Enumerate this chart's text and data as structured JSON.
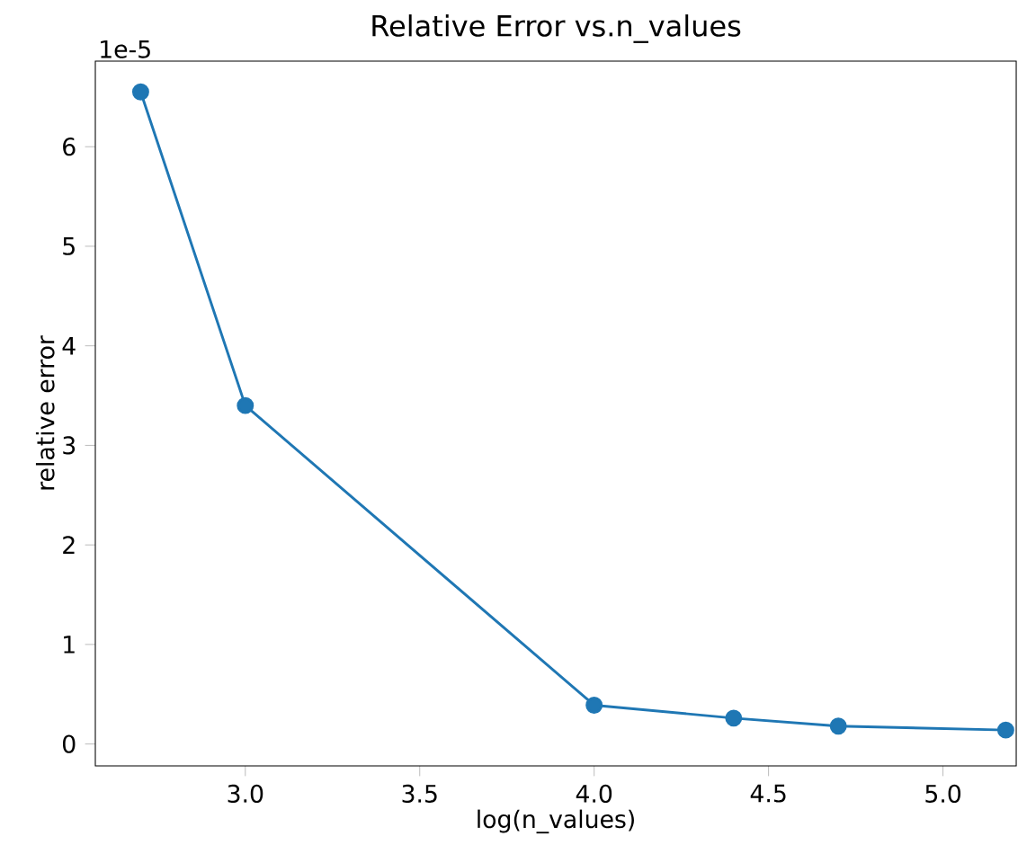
{
  "chart_data": {
    "type": "line",
    "title": "Relative Error vs.n_values",
    "xlabel": "log(n_values)",
    "ylabel": "relative error",
    "annotations": [
      "1e-5"
    ],
    "x": [
      2.7,
      3.0,
      4.0,
      4.4,
      4.7,
      5.18
    ],
    "series": [
      {
        "color": "#1f77b4",
        "values": [
          6.55,
          3.4,
          0.39,
          0.26,
          0.18,
          0.14
        ]
      }
    ],
    "xlim": [
      2.57,
      5.21
    ],
    "ylim": [
      -0.22,
      6.86
    ],
    "xticks": [
      {
        "value": 3.0,
        "label": "3.0"
      },
      {
        "value": 3.5,
        "label": "3.5"
      },
      {
        "value": 4.0,
        "label": "4.0"
      },
      {
        "value": 4.5,
        "label": "4.5"
      },
      {
        "value": 5.0,
        "label": "5.0"
      }
    ],
    "yticks": [
      0,
      1,
      2,
      3,
      4,
      5,
      6
    ],
    "grid": false,
    "marker": "circle",
    "line_style": "solid"
  }
}
